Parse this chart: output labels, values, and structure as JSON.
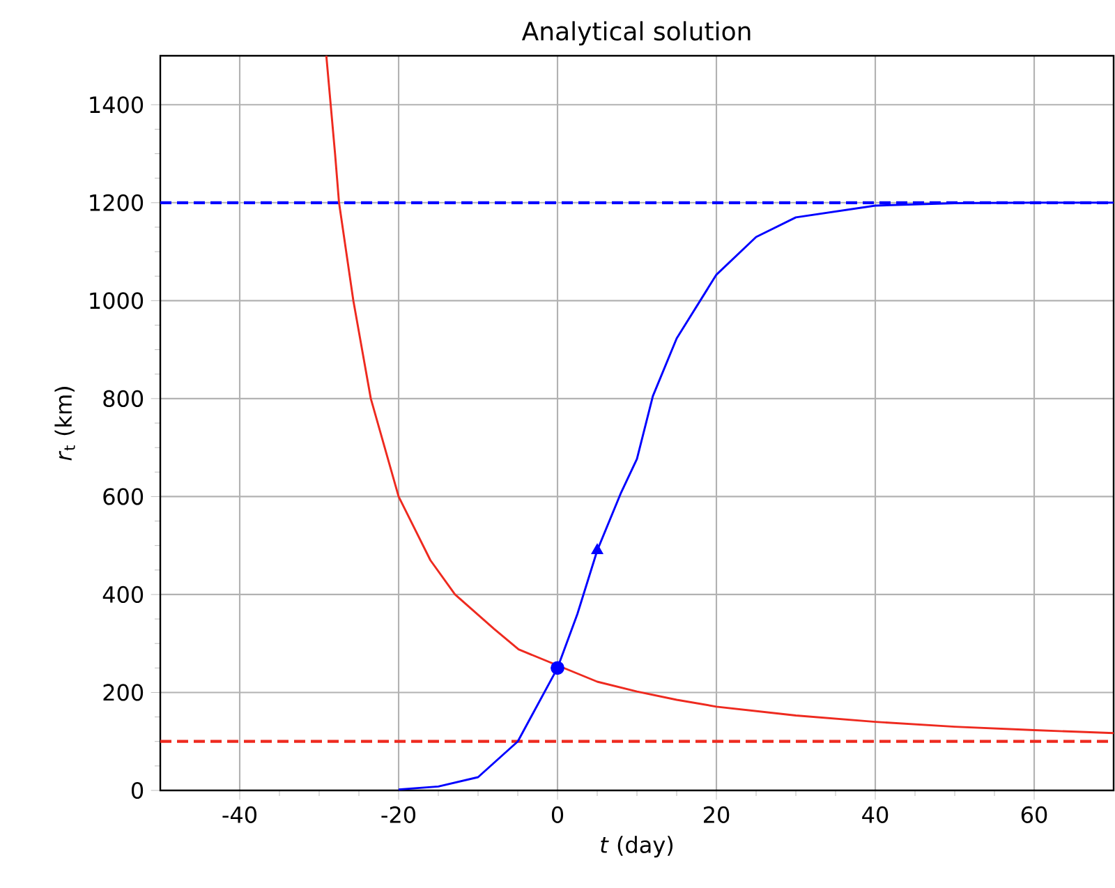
{
  "chart_data": {
    "type": "line",
    "title": "Analytical solution",
    "xlabel": "*t* (day)",
    "ylabel": "*r*$_{t}$ (km)",
    "xlim": [
      -50,
      70
    ],
    "ylim": [
      0,
      1500
    ],
    "xticks": [
      -40,
      -20,
      0,
      20,
      40,
      60
    ],
    "yticks": [
      0,
      200,
      400,
      600,
      800,
      1000,
      1200,
      1400
    ],
    "grid": true,
    "line_style": "solid",
    "series": [
      {
        "color": "#ee2a1f",
        "x": [
          -29.1,
          -28,
          -27.5,
          -25.7,
          -23.5,
          -20,
          -16,
          -12.9,
          -8,
          -4.9,
          5,
          10,
          15,
          20,
          30,
          40,
          50,
          60,
          70
        ],
        "values": [
          1500,
          1300,
          1200,
          1000,
          800,
          600,
          470,
          400,
          330,
          288,
          222,
          202,
          185,
          171,
          153,
          140,
          130,
          123,
          117
        ]
      },
      {
        "color": "#0000ff",
        "x": [
          -20,
          -15,
          -10,
          -5,
          0,
          2.5,
          5,
          8,
          10,
          12,
          15,
          20,
          25,
          30,
          40,
          50,
          60,
          70
        ],
        "values": [
          2,
          8,
          27,
          100,
          250,
          360,
          490,
          608,
          677,
          805,
          923,
          1053,
          1130,
          1170,
          1194,
          1199,
          1200,
          1200
        ]
      },
      {
        "type": "scatter",
        "marker": "circle",
        "color": "#0000ff",
        "x": [
          0
        ],
        "values": [
          250
        ]
      },
      {
        "type": "scatter",
        "marker": "triangle",
        "color": "#0000ff",
        "x": [
          5
        ],
        "values": [
          490
        ]
      }
    ],
    "ref_lines": [
      {
        "axis": "y",
        "value": 1200,
        "color": "#0000ff",
        "line_style": "dashed"
      },
      {
        "axis": "y",
        "value": 100,
        "color": "#ee2a1f",
        "line_style": "dashed"
      }
    ]
  }
}
